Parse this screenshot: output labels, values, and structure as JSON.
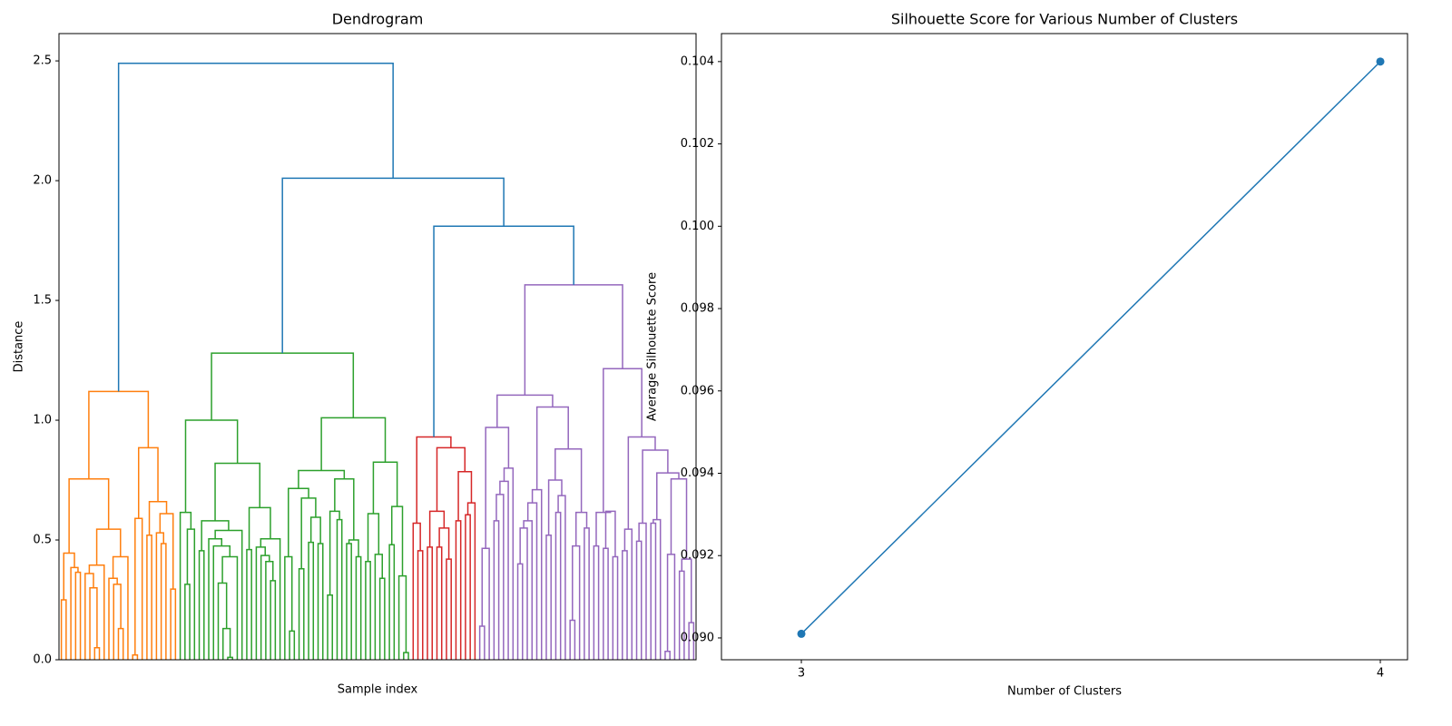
{
  "chart_data": [
    {
      "type": "dendrogram",
      "title": "Dendrogram",
      "xlabel": "Sample index",
      "ylabel": "Distance",
      "ylim": [
        0,
        2.614
      ],
      "yticks": [
        {
          "value": 0,
          "label": "0.0"
        },
        0.5,
        {
          "value": 1,
          "label": "1.0"
        },
        1.5,
        {
          "value": 2,
          "label": "2.0"
        },
        2.5
      ],
      "tree": {
        "height": 2.49,
        "color": "#1f77b4",
        "children": [
          {
            "height": 1.12,
            "color": "#ff7f0e",
            "children": [
              [
                0.755,
                [
                  0.445,
                  [
                    0.25,
                    0,
                    0
                  ],
                  [
                    0.385,
                    0,
                    [
                      0.365,
                      0,
                      0
                    ]
                  ]
                ],
                [
                  0.545,
                  [
                    0.395,
                    [
                      0.36,
                      0,
                      [
                        0.3,
                        0,
                        [
                          0.05,
                          0,
                          0
                        ]
                      ]
                    ],
                    0
                  ],
                  [
                    0.43,
                    [
                      0.34,
                      0,
                      [
                        0.315,
                        0,
                        [
                          0.13,
                          0,
                          0
                        ]
                      ]
                    ],
                    0
                  ]
                ]
              ],
              [
                0.885,
                [
                  0.59,
                  [
                    0.02,
                    0,
                    0
                  ],
                  0
                ],
                [
                  0.66,
                  [
                    0.52,
                    0,
                    0
                  ],
                  [
                    0.61,
                    [
                      0.53,
                      0,
                      [
                        0.485,
                        0,
                        0
                      ]
                    ],
                    [
                      0.295,
                      0,
                      0
                    ]
                  ]
                ]
              ]
            ]
          },
          {
            "height": 2.01,
            "color": "#1f77b4",
            "children": [
              {
                "height": 1.28,
                "color": "#2ca02c",
                "children": [
                  [
                    1.0,
                    [
                      0.615,
                      0,
                      [
                        0.545,
                        [
                          0.315,
                          0,
                          0
                        ],
                        0
                      ]
                    ],
                    [
                      0.82,
                      [
                        0.58,
                        [
                          0.455,
                          0,
                          0
                        ],
                        [
                          0.54,
                          [
                            0.505,
                            0,
                            [
                              0.475,
                              0,
                              [
                                0.43,
                                [
                                  0.32,
                                  0,
                                  [
                                    0.13,
                                    0,
                                    [
                                      0.01,
                                      0,
                                      0
                                    ]
                                  ]
                                ],
                                0
                              ]
                            ]
                          ],
                          0
                        ]
                      ],
                      [
                        0.635,
                        [
                          0.46,
                          0,
                          0
                        ],
                        [
                          0.505,
                          [
                            0.47,
                            0,
                            [
                              0.435,
                              0,
                              [
                                0.41,
                                0,
                                [
                                  0.33,
                                  0,
                                  0
                                ]
                              ]
                            ]
                          ],
                          0
                        ]
                      ]
                    ]
                  ],
                  [
                    1.01,
                    [
                      0.79,
                      [
                        0.715,
                        [
                          0.43,
                          0,
                          [
                            0.12,
                            0,
                            0
                          ]
                        ],
                        [
                          0.675,
                          [
                            0.38,
                            0,
                            0
                          ],
                          [
                            0.595,
                            [
                              0.49,
                              0,
                              0
                            ],
                            [
                              0.485,
                              0,
                              0
                            ]
                          ]
                        ]
                      ],
                      [
                        0.755,
                        [
                          0.62,
                          [
                            0.27,
                            0,
                            0
                          ],
                          [
                            0.585,
                            0,
                            0
                          ]
                        ],
                        [
                          0.5,
                          [
                            0.485,
                            0,
                            0
                          ],
                          [
                            0.43,
                            0,
                            0
                          ]
                        ]
                      ]
                    ],
                    [
                      0.825,
                      [
                        0.61,
                        [
                          0.41,
                          0,
                          0
                        ],
                        [
                          0.44,
                          0,
                          [
                            0.34,
                            0,
                            0
                          ]
                        ]
                      ],
                      [
                        0.64,
                        [
                          0.48,
                          0,
                          0
                        ],
                        [
                          0.35,
                          0,
                          [
                            0.03,
                            0,
                            0
                          ]
                        ]
                      ]
                    ]
                  ]
                ]
              },
              {
                "height": 1.81,
                "color": "#1f77b4",
                "children": [
                  {
                    "height": 0.93,
                    "color": "#d62728",
                    "children": [
                      [
                        0.57,
                        0,
                        [
                          0.455,
                          0,
                          0
                        ]
                      ],
                      [
                        0.885,
                        [
                          0.62,
                          [
                            0.47,
                            0,
                            0
                          ],
                          [
                            0.55,
                            [
                              0.47,
                              0,
                              0
                            ],
                            [
                              0.42,
                              0,
                              0
                            ]
                          ]
                        ],
                        [
                          0.785,
                          [
                            0.58,
                            0,
                            0
                          ],
                          [
                            0.655,
                            [
                              0.605,
                              0,
                              0
                            ],
                            0
                          ]
                        ]
                      ]
                    ]
                  },
                  {
                    "height": 1.565,
                    "color": "#9467bd",
                    "children": [
                      [
                        1.105,
                        [
                          0.97,
                          [
                            0.465,
                            [
                              0.14,
                              0,
                              0
                            ],
                            0
                          ],
                          [
                            0.8,
                            [
                              0.745,
                              [
                                0.69,
                                [
                                  0.58,
                                  0,
                                  0
                                ],
                                0
                              ],
                              0
                            ],
                            0
                          ]
                        ],
                        [
                          1.055,
                          [
                            0.71,
                            [
                              0.655,
                              [
                                0.58,
                                [
                                  0.55,
                                  [
                                    0.4,
                                    0,
                                    0
                                  ],
                                  0
                                ],
                                0
                              ],
                              0
                            ],
                            0
                          ],
                          [
                            0.88,
                            [
                              0.75,
                              [
                                0.52,
                                0,
                                0
                              ],
                              [
                                0.685,
                                [
                                  0.615,
                                  0,
                                  0
                                ],
                                0
                              ]
                            ],
                            [
                              0.615,
                              [
                                0.475,
                                [
                                  0.165,
                                  0,
                                  0
                                ],
                                0
                              ],
                              [
                                0.55,
                                0,
                                0
                              ]
                            ]
                          ]
                        ]
                      ],
                      [
                        1.215,
                        [
                          0.615,
                          [
                            0.475,
                            0,
                            0
                          ],
                          [
                            0.62,
                            [
                              0.465,
                              0,
                              0
                            ],
                            [
                              0.43,
                              0,
                              0
                            ]
                          ]
                        ],
                        [
                          0.93,
                          [
                            0.545,
                            [
                              0.455,
                              0,
                              0
                            ],
                            0
                          ],
                          [
                            0.875,
                            [
                              0.57,
                              [
                                0.495,
                                0,
                                0
                              ],
                              0
                            ],
                            [
                              0.78,
                              [
                                0.585,
                                [
                                  0.57,
                                  0,
                                  0
                                ],
                                0
                              ],
                              [
                                0.755,
                                [
                                  0.44,
                                  [
                                    0.035,
                                    0,
                                    0
                                  ],
                                  0
                                ],
                                [
                                  0.42,
                                  [
                                    0.37,
                                    0,
                                    0
                                  ],
                                  [
                                    0.155,
                                    0,
                                    0
                                  ]
                                ]
                              ]
                            ]
                          ]
                        ]
                      ]
                    ]
                  }
                ]
              }
            ]
          }
        ]
      }
    },
    {
      "type": "line",
      "title": "Silhouette Score for Various Number of Clusters",
      "xlabel": "Number of Clusters",
      "ylabel": "Average Silhouette Score",
      "x": [
        3,
        4
      ],
      "values": [
        0.0901,
        0.104
      ],
      "color": "#1f77b4",
      "xlim": [
        2.862,
        4.047
      ],
      "xticks": [
        3,
        4
      ],
      "ylim": [
        0.08947,
        0.10468
      ],
      "yticks": [
        {
          "value": 0.09,
          "label": "0.090"
        },
        {
          "value": 0.092,
          "label": "0.092"
        },
        {
          "value": 0.094,
          "label": "0.094"
        },
        {
          "value": 0.096,
          "label": "0.096"
        },
        {
          "value": 0.098,
          "label": "0.098"
        },
        {
          "value": 0.1,
          "label": "0.100"
        },
        {
          "value": 0.102,
          "label": "0.102"
        },
        {
          "value": 0.104,
          "label": "0.104"
        }
      ]
    }
  ]
}
